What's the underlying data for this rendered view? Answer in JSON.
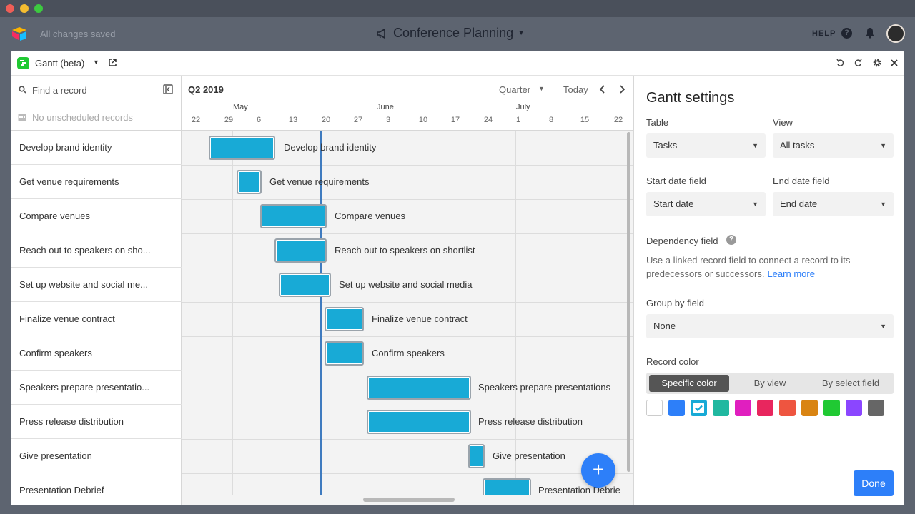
{
  "app": {
    "save_status": "All changes saved",
    "base_title": "Conference Planning",
    "help_label": "HELP",
    "help_icon": "?"
  },
  "block": {
    "name": "Gantt (beta)"
  },
  "records_panel": {
    "search_placeholder": "Find a record",
    "unscheduled_text": "No unscheduled records",
    "records": [
      "Develop brand identity",
      "Get venue requirements",
      "Compare venues",
      "Reach out to speakers on sho...",
      "Set up website and social me...",
      "Finalize venue contract",
      "Confirm speakers",
      "Speakers prepare presentatio...",
      "Press release distribution",
      "Give presentation",
      "Presentation Debrief"
    ]
  },
  "gantt": {
    "period_title": "Q2 2019",
    "scale": "Quarter",
    "today_label": "Today",
    "months": [
      "May",
      "June",
      "July"
    ],
    "days": [
      "22",
      "29",
      "6",
      "13",
      "20",
      "27",
      "3",
      "10",
      "17",
      "24",
      "1",
      "8",
      "15",
      "22"
    ],
    "bar_color": "#18aad6",
    "tasks": [
      {
        "label": "Develop brand identity"
      },
      {
        "label": "Get venue requirements"
      },
      {
        "label": "Compare venues"
      },
      {
        "label": "Reach out to speakers on shortlist"
      },
      {
        "label": "Set up website and social media"
      },
      {
        "label": "Finalize venue contract"
      },
      {
        "label": "Confirm speakers"
      },
      {
        "label": "Speakers prepare presentations"
      },
      {
        "label": "Press release distribution"
      },
      {
        "label": "Give presentation"
      },
      {
        "label": "Presentation Debrie"
      }
    ],
    "fab_label": "+"
  },
  "settings": {
    "title": "Gantt settings",
    "table_label": "Table",
    "table_value": "Tasks",
    "view_label": "View",
    "view_value": "All tasks",
    "start_label": "Start date field",
    "start_value": "Start date",
    "end_label": "End date field",
    "end_value": "End date",
    "dependency_label": "Dependency field",
    "dependency_help": "Use a linked record field to connect a record to its predecessors or successors.",
    "learn_more": "Learn more",
    "group_label": "Group by field",
    "group_value": "None",
    "record_color_label": "Record color",
    "color_modes": [
      "Specific color",
      "By view",
      "By select field"
    ],
    "swatches": [
      "#ffffff",
      "#2d7ff9",
      "#18aad6",
      "#20b8a0",
      "#e01fbf",
      "#e8265e",
      "#ee5540",
      "#d98412",
      "#20c933",
      "#8b46ff",
      "#666666"
    ],
    "selected_swatch": "#18aad6",
    "done_label": "Done"
  }
}
